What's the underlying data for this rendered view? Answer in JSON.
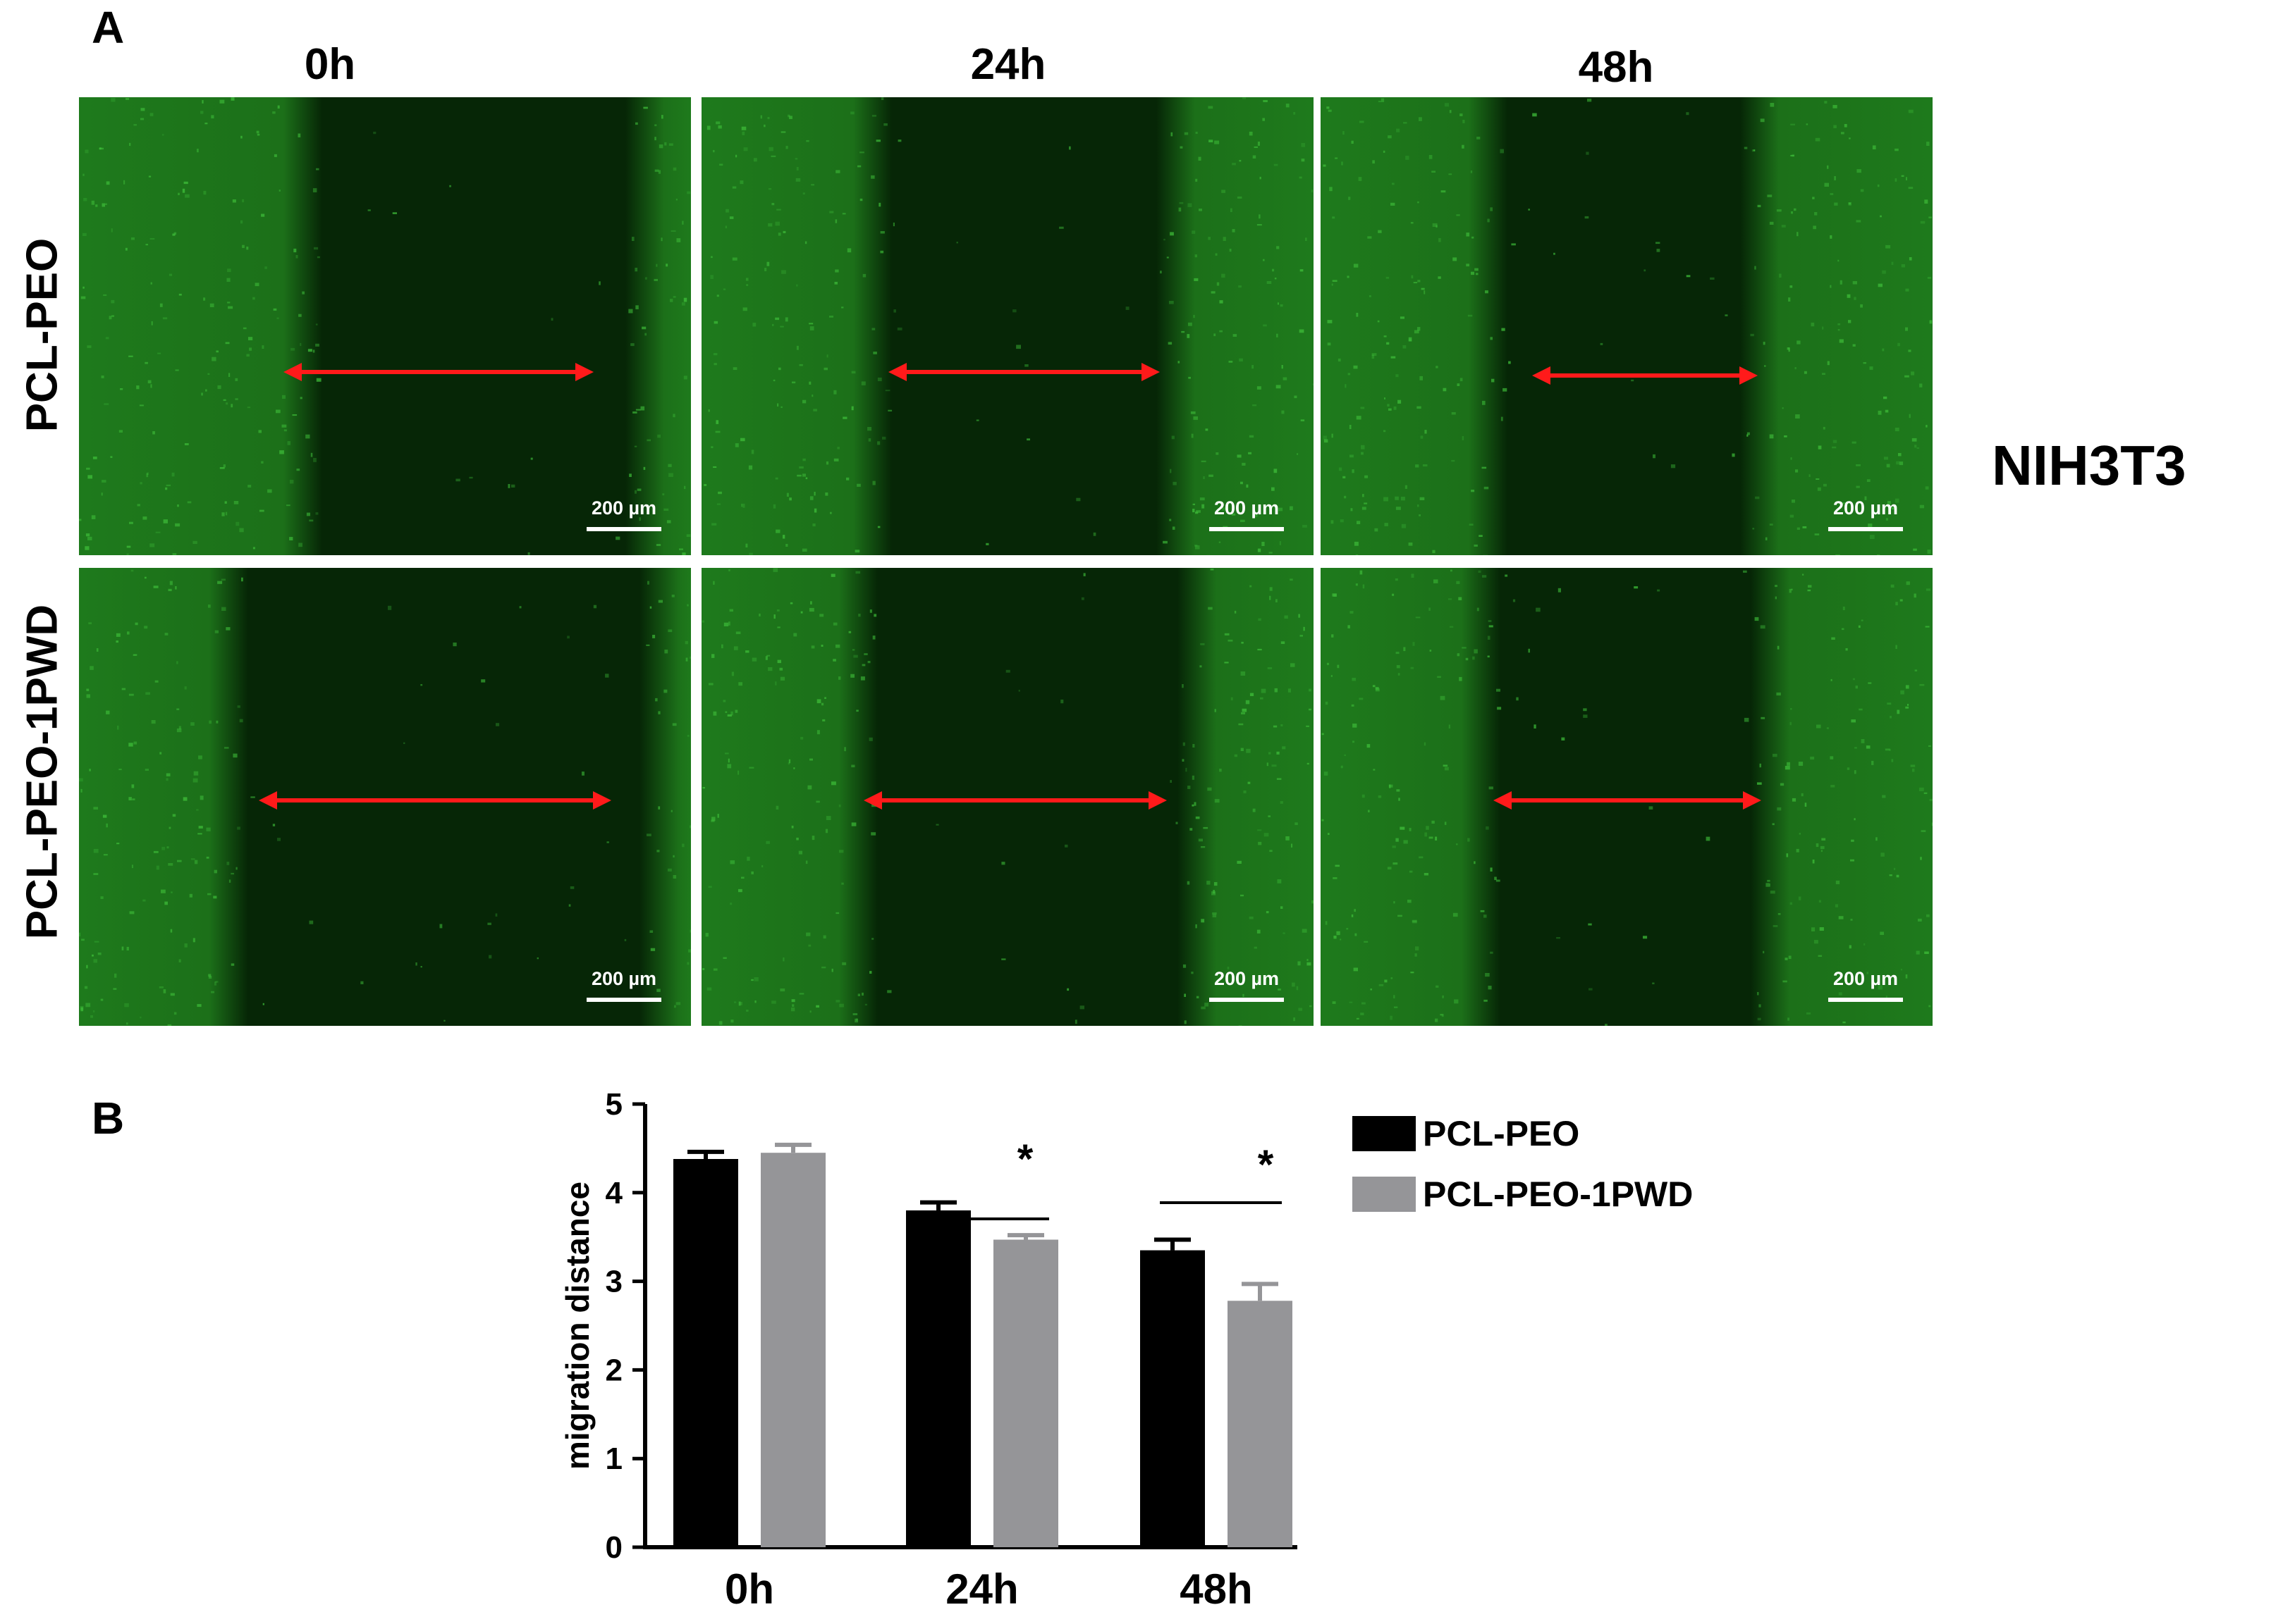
{
  "figure": {
    "panel_a_label": "A",
    "panel_b_label": "B",
    "time_headers": [
      "0h",
      "24h",
      "48h"
    ],
    "row_labels": [
      "PCL-PEO",
      "PCL-PEO-1PWD"
    ],
    "cell_line": "NIH3T3",
    "scale_bar_label": "200 µm",
    "colors": {
      "micrograph_background": "#021202",
      "cell_fluorescence": "#3fbf3a",
      "gap_arrow": "#ff1a1a",
      "scale_bar": "#ffffff"
    },
    "micrographs": [
      {
        "row": "PCL-PEO",
        "time": "0h",
        "arrow_icon": "double-arrow-icon"
      },
      {
        "row": "PCL-PEO",
        "time": "24h",
        "arrow_icon": "double-arrow-icon"
      },
      {
        "row": "PCL-PEO",
        "time": "48h",
        "arrow_icon": "double-arrow-icon"
      },
      {
        "row": "PCL-PEO-1PWD",
        "time": "0h",
        "arrow_icon": "double-arrow-icon"
      },
      {
        "row": "PCL-PEO-1PWD",
        "time": "24h",
        "arrow_icon": "double-arrow-icon"
      },
      {
        "row": "PCL-PEO-1PWD",
        "time": "48h",
        "arrow_icon": "double-arrow-icon"
      }
    ]
  },
  "chart_data": {
    "type": "bar",
    "categories": [
      "0h",
      "24h",
      "48h"
    ],
    "series": [
      {
        "name": "PCL-PEO",
        "color": "#000000",
        "values": [
          4.38,
          3.8,
          3.35
        ],
        "errors": [
          0.08,
          0.09,
          0.12
        ]
      },
      {
        "name": "PCL-PEO-1PWD",
        "color": "#959598",
        "values": [
          4.45,
          3.47,
          2.78
        ],
        "errors": [
          0.09,
          0.05,
          0.19
        ]
      }
    ],
    "ylabel": "migration distance",
    "xlabel": "",
    "ylim": [
      0,
      5
    ],
    "yticks": [
      "0",
      "1",
      "2",
      "3",
      "4",
      "5"
    ],
    "significance": [
      {
        "category": "24h",
        "label": "*"
      },
      {
        "category": "48h",
        "label": "*"
      }
    ],
    "legend_position": "right",
    "grid": false
  }
}
